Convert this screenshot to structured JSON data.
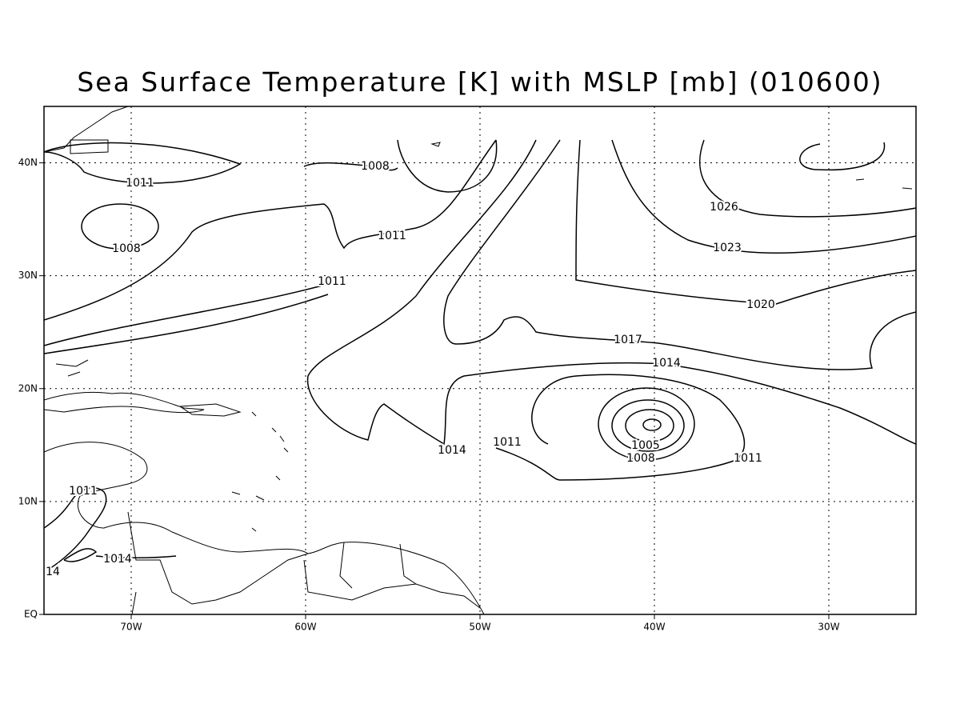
{
  "title": "Sea Surface Temperature [K] with MSLP [mb] (010600)",
  "map": {
    "xlim": [
      -75,
      -25
    ],
    "ylim": [
      0,
      45
    ],
    "xticks": [
      {
        "value": -70,
        "label": "70W"
      },
      {
        "value": -60,
        "label": "60W"
      },
      {
        "value": -50,
        "label": "50W"
      },
      {
        "value": -40,
        "label": "40W"
      },
      {
        "value": -30,
        "label": "30W"
      }
    ],
    "yticks": [
      {
        "value": 0,
        "label": "EQ"
      },
      {
        "value": 10,
        "label": "10N"
      },
      {
        "value": 20,
        "label": "20N"
      },
      {
        "value": 30,
        "label": "30N"
      },
      {
        "value": 40,
        "label": "40N"
      }
    ],
    "grid": true,
    "contour_labels": [
      "1008",
      "1011",
      "1008",
      "1011",
      "1011",
      "1026",
      "1023",
      "1020",
      "1017",
      "1014",
      "1014",
      "1011",
      "1005",
      "1008",
      "1011",
      "1011",
      "1014",
      "14"
    ]
  }
}
